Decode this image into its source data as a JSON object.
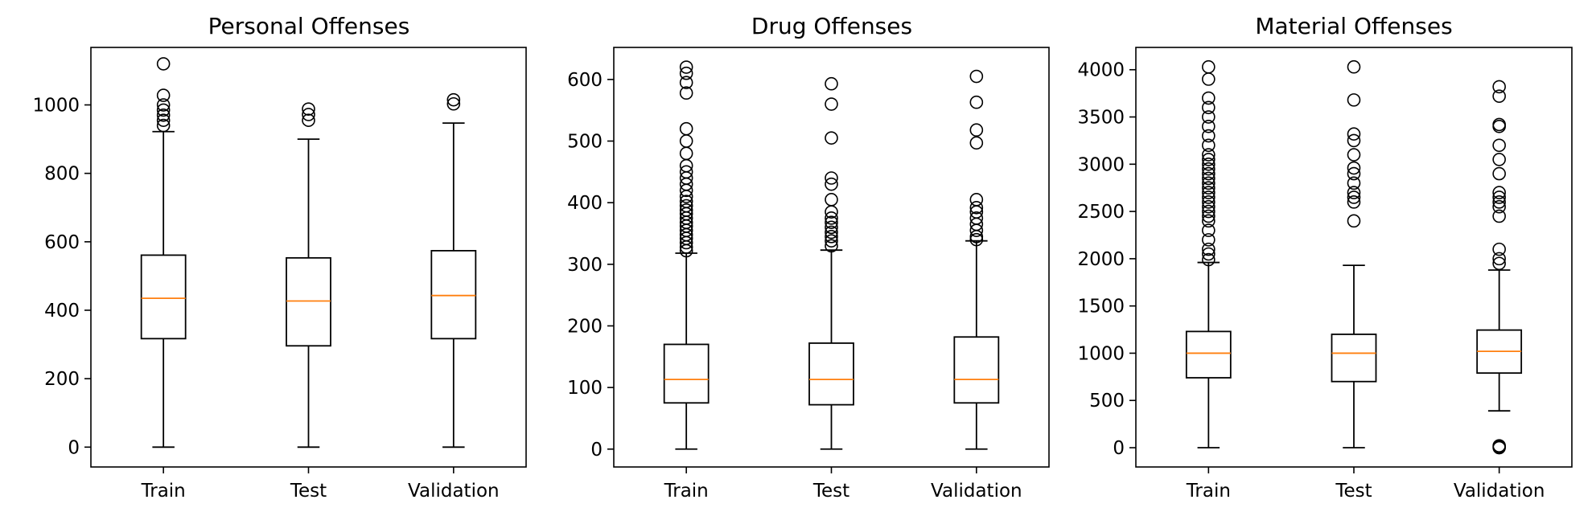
{
  "chart_data": [
    {
      "type": "box",
      "title": "Personal Offenses",
      "categories": [
        "Train",
        "Test",
        "Validation"
      ],
      "ylim": [
        -58,
        1168
      ],
      "yticks": [
        0,
        200,
        400,
        600,
        800,
        1000
      ],
      "boxes": [
        {
          "name": "Train",
          "whisker_low": 0,
          "q1": 317,
          "median": 435,
          "q3": 561,
          "whisker_high": 922,
          "outliers": [
            940,
            955,
            970,
            985,
            1000,
            1028,
            1120
          ]
        },
        {
          "name": "Test",
          "whisker_low": 0,
          "q1": 296,
          "median": 427,
          "q3": 553,
          "whisker_high": 900,
          "outliers": [
            955,
            972,
            988
          ]
        },
        {
          "name": "Validation",
          "whisker_low": 0,
          "q1": 317,
          "median": 443,
          "q3": 574,
          "whisker_high": 947,
          "outliers": [
            1003,
            1015
          ]
        }
      ]
    },
    {
      "type": "box",
      "title": "Drug Offenses",
      "categories": [
        "Train",
        "Test",
        "Validation"
      ],
      "ylim": [
        -29,
        652
      ],
      "yticks": [
        0,
        100,
        200,
        300,
        400,
        500,
        600
      ],
      "boxes": [
        {
          "name": "Train",
          "whisker_low": 0,
          "q1": 75,
          "median": 113,
          "q3": 170,
          "whisker_high": 318,
          "outliers": [
            322,
            328,
            335,
            342,
            348,
            355,
            362,
            368,
            375,
            382,
            388,
            395,
            402,
            410,
            420,
            430,
            440,
            450,
            460,
            480,
            500,
            520,
            578,
            595,
            610,
            620
          ]
        },
        {
          "name": "Test",
          "whisker_low": 0,
          "q1": 72,
          "median": 113,
          "q3": 172,
          "whisker_high": 323,
          "outliers": [
            330,
            338,
            345,
            352,
            360,
            368,
            375,
            385,
            405,
            430,
            440,
            505,
            560,
            593
          ]
        },
        {
          "name": "Validation",
          "whisker_low": 0,
          "q1": 75,
          "median": 113,
          "q3": 182,
          "whisker_high": 338,
          "outliers": [
            340,
            345,
            355,
            365,
            375,
            385,
            392,
            405,
            497,
            518,
            563,
            605
          ]
        }
      ]
    },
    {
      "type": "box",
      "title": "Material Offenses",
      "categories": [
        "Train",
        "Test",
        "Validation"
      ],
      "ylim": [
        -204,
        4236
      ],
      "yticks": [
        0,
        500,
        1000,
        1500,
        2000,
        2500,
        3000,
        3500,
        4000
      ],
      "boxes": [
        {
          "name": "Train",
          "whisker_low": 0,
          "q1": 740,
          "median": 1000,
          "q3": 1230,
          "whisker_high": 1960,
          "outliers": [
            1990,
            2050,
            2100,
            2200,
            2300,
            2400,
            2450,
            2500,
            2550,
            2600,
            2650,
            2700,
            2750,
            2800,
            2850,
            2900,
            2950,
            3000,
            3050,
            3100,
            3200,
            3300,
            3400,
            3500,
            3600,
            3700,
            3900,
            4030
          ]
        },
        {
          "name": "Test",
          "whisker_low": 0,
          "q1": 700,
          "median": 1000,
          "q3": 1200,
          "whisker_high": 1930,
          "outliers": [
            2400,
            2600,
            2650,
            2700,
            2800,
            2900,
            2960,
            3100,
            3250,
            3320,
            3680,
            4030
          ]
        },
        {
          "name": "Validation",
          "whisker_low": 390,
          "q1": 790,
          "median": 1020,
          "q3": 1245,
          "whisker_high": 1880,
          "outliers": [
            0,
            10,
            20,
            1950,
            2000,
            2100,
            2450,
            2550,
            2600,
            2650,
            2700,
            2900,
            3050,
            3200,
            3400,
            3420,
            3720,
            3820
          ]
        }
      ]
    }
  ],
  "style": {
    "median_color": "#ff7f0e",
    "line_color": "#000000",
    "background": "#ffffff"
  }
}
